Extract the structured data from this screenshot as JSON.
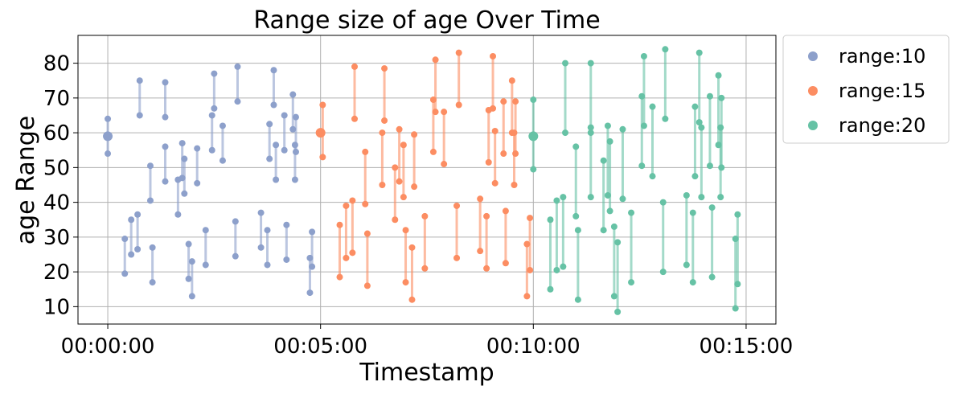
{
  "chart_data": {
    "type": "scatter",
    "title": "Range size of age Over Time",
    "xlabel": "Timestamp",
    "ylabel": "age Range",
    "xlim": [
      -0.7,
      15.7
    ],
    "ylim": [
      5,
      88
    ],
    "x_unit": "minutes",
    "x_ticks": [
      0,
      5,
      10,
      15
    ],
    "x_tick_labels": [
      "00:00:00",
      "00:05:00",
      "00:10:00",
      "00:15:00"
    ],
    "y_ticks": [
      10,
      20,
      30,
      40,
      50,
      60,
      70,
      80
    ],
    "y_tick_labels": [
      "10",
      "20",
      "30",
      "40",
      "50",
      "60",
      "70",
      "80"
    ],
    "grid": true,
    "legend_position": "outside-right",
    "series": [
      {
        "name": "range:10",
        "color": "#8da0cb",
        "ranges": [
          [
            0.0,
            54.0,
            64.0
          ],
          [
            0.4,
            19.5,
            29.5
          ],
          [
            0.55,
            25.0,
            35.0
          ],
          [
            0.7,
            26.5,
            36.5
          ],
          [
            0.75,
            65.0,
            75.0
          ],
          [
            1.0,
            40.5,
            50.5
          ],
          [
            1.05,
            17.0,
            27.0
          ],
          [
            1.35,
            64.5,
            74.5
          ],
          [
            1.35,
            46.0,
            56.0
          ],
          [
            1.65,
            36.5,
            46.5
          ],
          [
            1.75,
            47.0,
            57.0
          ],
          [
            1.8,
            42.5,
            52.5
          ],
          [
            1.9,
            18.0,
            28.0
          ],
          [
            1.98,
            13.0,
            23.0
          ],
          [
            2.1,
            45.5,
            55.5
          ],
          [
            2.3,
            22.0,
            32.0
          ],
          [
            2.45,
            55.0,
            65.0
          ],
          [
            2.5,
            67.0,
            77.0
          ],
          [
            2.7,
            52.0,
            62.0
          ],
          [
            3.0,
            24.5,
            34.5
          ],
          [
            3.05,
            69.0,
            79.0
          ],
          [
            3.6,
            27.0,
            37.0
          ],
          [
            3.75,
            22.0,
            32.0
          ],
          [
            3.8,
            52.5,
            62.5
          ],
          [
            3.9,
            68.0,
            78.0
          ],
          [
            3.95,
            46.5,
            56.5
          ],
          [
            4.15,
            55.0,
            65.0
          ],
          [
            4.2,
            23.5,
            33.5
          ],
          [
            4.35,
            61.0,
            71.0
          ],
          [
            4.4,
            46.5,
            56.5
          ],
          [
            4.42,
            54.5,
            64.5
          ],
          [
            4.75,
            14.0,
            24.0
          ],
          [
            4.8,
            21.5,
            31.5
          ]
        ],
        "singles": [
          [
            0.0,
            59.0
          ]
        ]
      },
      {
        "name": "range:15",
        "color": "#fc8d62",
        "ranges": [
          [
            5.05,
            53.0,
            68.0
          ],
          [
            5.45,
            18.5,
            33.5
          ],
          [
            5.6,
            24.0,
            39.0
          ],
          [
            5.75,
            25.5,
            40.5
          ],
          [
            5.8,
            64.0,
            79.0
          ],
          [
            6.05,
            39.5,
            54.5
          ],
          [
            6.1,
            16.0,
            31.0
          ],
          [
            6.45,
            45.0,
            60.0
          ],
          [
            6.5,
            63.5,
            78.5
          ],
          [
            6.75,
            35.0,
            50.0
          ],
          [
            6.85,
            46.0,
            61.0
          ],
          [
            6.95,
            41.5,
            56.5
          ],
          [
            7.0,
            17.0,
            32.0
          ],
          [
            7.15,
            12.0,
            27.0
          ],
          [
            7.2,
            44.5,
            59.5
          ],
          [
            7.45,
            21.0,
            36.0
          ],
          [
            7.65,
            54.5,
            69.5
          ],
          [
            7.7,
            66.0,
            81.0
          ],
          [
            7.9,
            51.0,
            66.0
          ],
          [
            8.2,
            24.0,
            39.0
          ],
          [
            8.25,
            68.0,
            83.0
          ],
          [
            8.75,
            26.0,
            41.0
          ],
          [
            8.9,
            21.0,
            36.0
          ],
          [
            8.95,
            51.5,
            66.5
          ],
          [
            9.05,
            67.0,
            82.0
          ],
          [
            9.1,
            45.5,
            60.5
          ],
          [
            9.3,
            54.0,
            69.0
          ],
          [
            9.35,
            22.5,
            37.5
          ],
          [
            9.5,
            60.0,
            75.0
          ],
          [
            9.55,
            45.0,
            60.0
          ],
          [
            9.58,
            54.0,
            69.0
          ],
          [
            9.85,
            13.0,
            28.0
          ],
          [
            9.92,
            20.5,
            35.5
          ]
        ],
        "singles": [
          [
            5.0,
            60.0
          ]
        ]
      },
      {
        "name": "range:20",
        "color": "#66c2a5",
        "ranges": [
          [
            10.0,
            49.5,
            69.5
          ],
          [
            10.4,
            15.0,
            35.0
          ],
          [
            10.55,
            20.5,
            40.5
          ],
          [
            10.7,
            21.5,
            41.5
          ],
          [
            10.75,
            60.0,
            80.0
          ],
          [
            11.0,
            36.0,
            56.0
          ],
          [
            11.05,
            12.0,
            32.0
          ],
          [
            11.35,
            60.0,
            80.0
          ],
          [
            11.35,
            41.5,
            61.5
          ],
          [
            11.65,
            32.0,
            52.0
          ],
          [
            11.75,
            42.0,
            62.0
          ],
          [
            11.8,
            37.5,
            57.5
          ],
          [
            11.9,
            13.0,
            33.0
          ],
          [
            11.98,
            8.5,
            28.5
          ],
          [
            12.1,
            41.0,
            61.0
          ],
          [
            12.3,
            17.0,
            37.0
          ],
          [
            12.55,
            50.5,
            70.5
          ],
          [
            12.6,
            62.0,
            82.0
          ],
          [
            12.8,
            47.5,
            67.5
          ],
          [
            13.05,
            20.0,
            40.0
          ],
          [
            13.1,
            64.0,
            84.0
          ],
          [
            13.6,
            22.0,
            42.0
          ],
          [
            13.75,
            17.0,
            37.0
          ],
          [
            13.8,
            47.5,
            67.5
          ],
          [
            13.9,
            63.0,
            83.0
          ],
          [
            13.95,
            41.5,
            61.5
          ],
          [
            14.15,
            50.5,
            70.5
          ],
          [
            14.2,
            18.5,
            38.5
          ],
          [
            14.35,
            56.5,
            76.5
          ],
          [
            14.4,
            41.5,
            61.5
          ],
          [
            14.42,
            50.0,
            70.0
          ],
          [
            14.75,
            9.5,
            29.5
          ],
          [
            14.8,
            16.5,
            36.5
          ]
        ],
        "singles": [
          [
            10.0,
            59.0
          ]
        ]
      }
    ]
  }
}
